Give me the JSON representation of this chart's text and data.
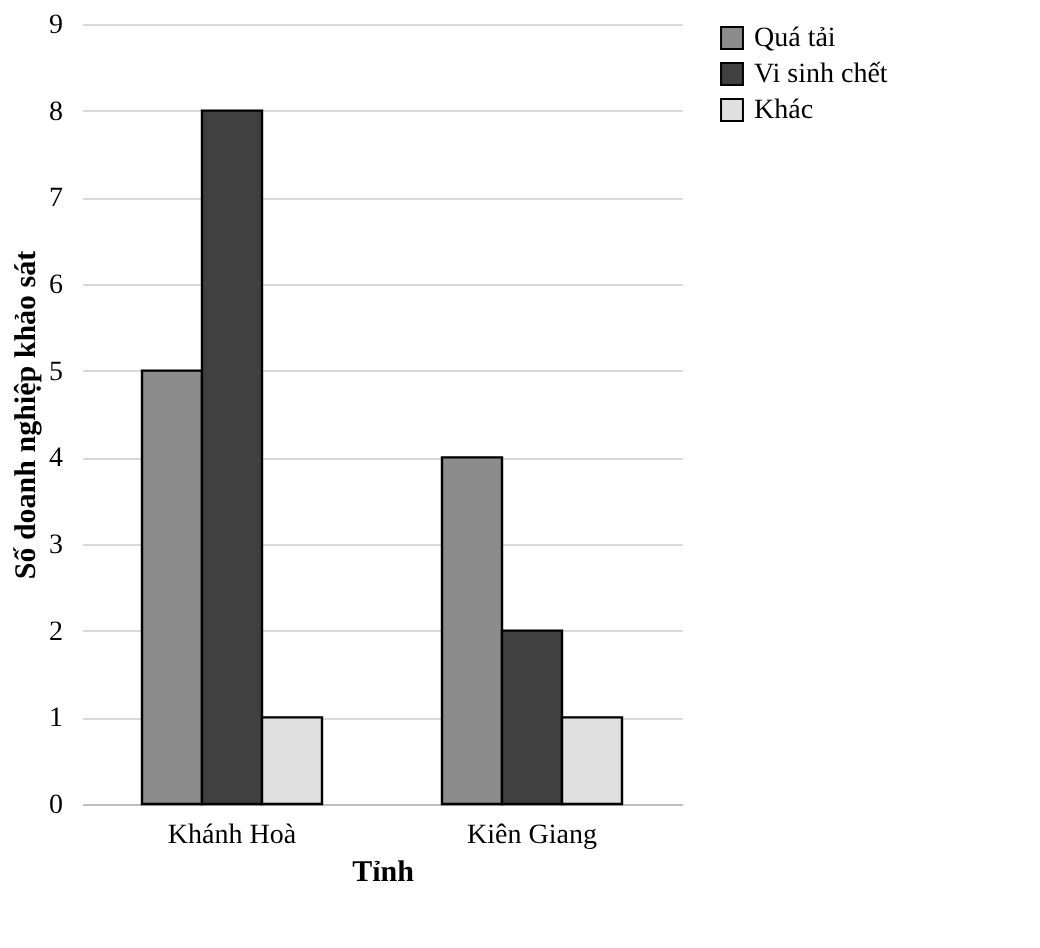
{
  "chart_data": {
    "type": "bar",
    "xlabel": "Tỉnh",
    "ylabel": "Số doanh nghiệp khảo sát",
    "categories": [
      "Khánh Hoà",
      "Kiên Giang"
    ],
    "series": [
      {
        "name": "Quá tải",
        "color": "#8c8c8c",
        "values": [
          5,
          4
        ]
      },
      {
        "name": "Vi sinh chết",
        "color": "#404040",
        "values": [
          8,
          2
        ]
      },
      {
        "name": "Khác",
        "color": "#e0e0e0",
        "values": [
          1,
          1
        ]
      }
    ],
    "ylim": [
      0,
      9
    ],
    "yticks": [
      0,
      1,
      2,
      3,
      4,
      5,
      6,
      7,
      8,
      9
    ],
    "grid": "y",
    "legend": "right"
  }
}
